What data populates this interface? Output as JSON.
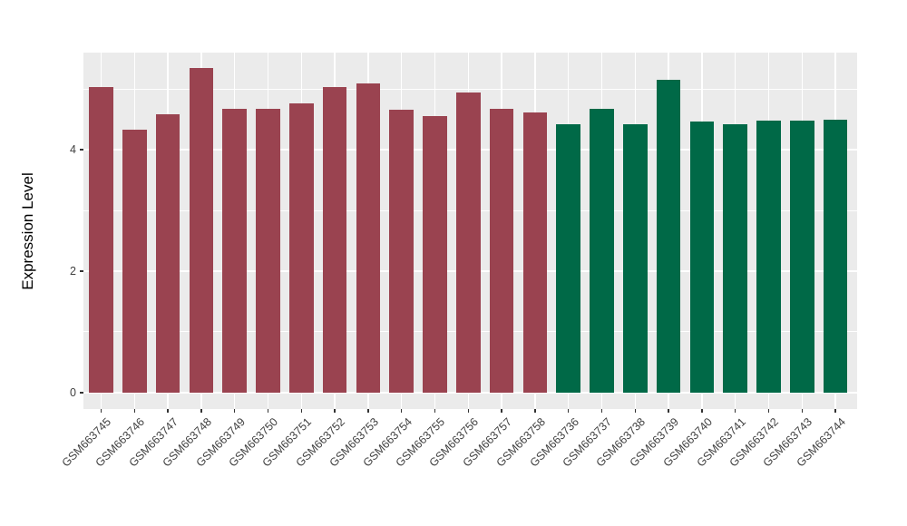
{
  "chart_data": {
    "type": "bar",
    "title": "",
    "xlabel": "",
    "ylabel": "Expression Level",
    "legend": "none",
    "grid": true,
    "categories": [
      "GSM663745",
      "GSM663746",
      "GSM663747",
      "GSM663748",
      "GSM663749",
      "GSM663750",
      "GSM663751",
      "GSM663752",
      "GSM663753",
      "GSM663754",
      "GSM663755",
      "GSM663756",
      "GSM663757",
      "GSM663758",
      "GSM663736",
      "GSM663737",
      "GSM663738",
      "GSM663739",
      "GSM663740",
      "GSM663741",
      "GSM663742",
      "GSM663743",
      "GSM663744"
    ],
    "values": [
      5.04,
      4.33,
      4.58,
      5.35,
      4.67,
      4.67,
      4.77,
      5.03,
      5.09,
      4.66,
      4.55,
      4.95,
      4.67,
      4.62,
      4.42,
      4.67,
      4.42,
      5.15,
      4.47,
      4.42,
      4.48,
      4.48,
      4.5
    ],
    "bar_colors": [
      "#9A4350",
      "#9A4350",
      "#9A4350",
      "#9A4350",
      "#9A4350",
      "#9A4350",
      "#9A4350",
      "#9A4350",
      "#9A4350",
      "#9A4350",
      "#9A4350",
      "#9A4350",
      "#9A4350",
      "#9A4350",
      "#006947",
      "#006947",
      "#006947",
      "#006947",
      "#006947",
      "#006947",
      "#006947",
      "#006947",
      "#006947"
    ],
    "yticks": [
      0,
      2,
      4
    ],
    "yticks_minor": [
      1,
      3,
      5
    ],
    "ylim": [
      -0.27,
      5.6
    ]
  },
  "colors": {
    "figure_bg": "#FFFFFF",
    "panel_bg": "#EBEBEB",
    "gridline": "#FFFFFF",
    "bar_maroon": "#9A4350",
    "bar_green": "#006947",
    "axis_text": "#404040",
    "axis_title": "#000000",
    "tick_mark": "#333333"
  }
}
